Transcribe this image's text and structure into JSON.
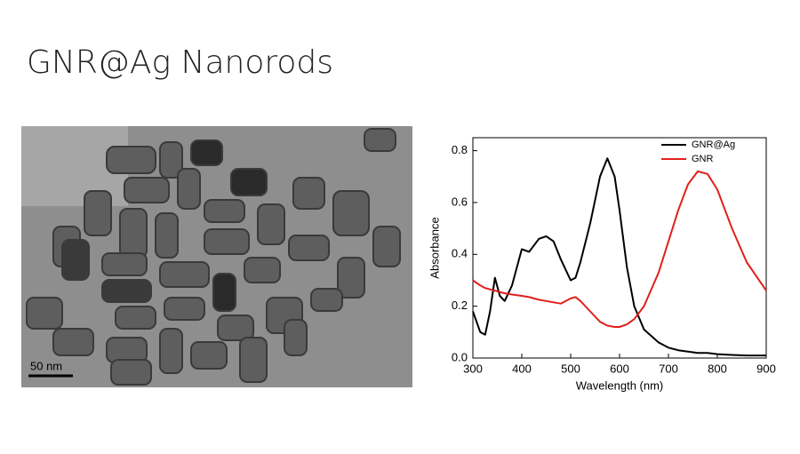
{
  "title": "GNR@Ag Nanorods",
  "image": {
    "scale_label": "50 nm"
  },
  "chart_data": {
    "type": "line",
    "xlabel": "Wavelength (nm)",
    "ylabel": "Absorbance",
    "x": [
      300,
      315,
      325,
      335,
      345,
      355,
      365,
      380,
      400,
      415,
      435,
      450,
      465,
      480,
      500,
      510,
      520,
      540,
      560,
      575,
      590,
      600,
      615,
      630,
      650,
      680,
      700,
      720,
      740,
      760,
      780,
      800,
      830,
      860,
      900
    ],
    "series": [
      {
        "name": "GNR@Ag",
        "color": "#000000",
        "values": [
          0.18,
          0.1,
          0.09,
          0.18,
          0.31,
          0.24,
          0.22,
          0.28,
          0.42,
          0.41,
          0.46,
          0.47,
          0.45,
          0.38,
          0.3,
          0.31,
          0.37,
          0.52,
          0.7,
          0.77,
          0.7,
          0.57,
          0.35,
          0.2,
          0.11,
          0.06,
          0.04,
          0.03,
          0.025,
          0.02,
          0.02,
          0.015,
          0.012,
          0.01,
          0.01
        ]
      },
      {
        "name": "GNR",
        "color": "#e0201b",
        "values": [
          0.3,
          0.28,
          0.27,
          0.265,
          0.26,
          0.255,
          0.25,
          0.245,
          0.24,
          0.235,
          0.225,
          0.22,
          0.215,
          0.21,
          0.23,
          0.235,
          0.22,
          0.18,
          0.14,
          0.125,
          0.12,
          0.12,
          0.13,
          0.15,
          0.2,
          0.33,
          0.45,
          0.57,
          0.67,
          0.72,
          0.71,
          0.65,
          0.5,
          0.37,
          0.26
        ]
      }
    ],
    "xlim": [
      300,
      900
    ],
    "xticks": [
      300,
      400,
      500,
      600,
      700,
      800,
      900
    ],
    "ylim": [
      0,
      0.85
    ],
    "yticks": [
      {
        "value": 0,
        "label": "0.0"
      },
      0.2,
      0.4,
      0.6,
      0.8
    ],
    "legend": "upper right"
  }
}
